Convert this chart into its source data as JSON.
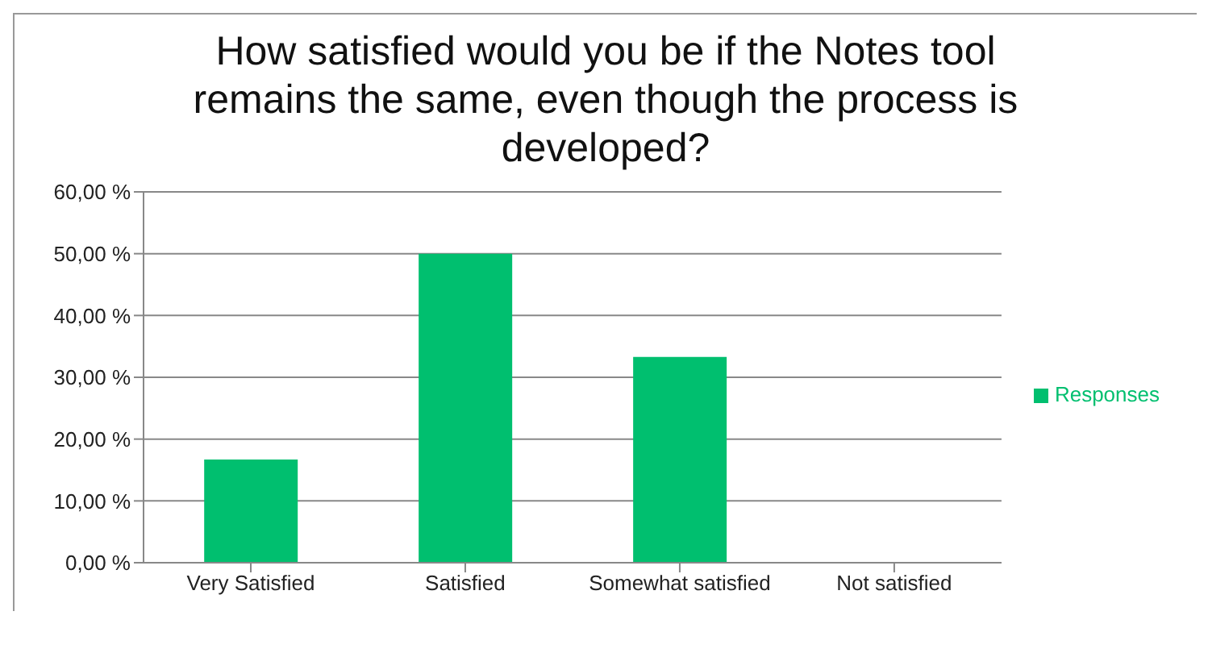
{
  "chart_data": {
    "type": "bar",
    "title": "How satisfied would you be if the Notes tool remains the same, even though the process is developed?",
    "categories": [
      "Very Satisfied",
      "Satisfied",
      "Somewhat satisfied",
      "Not satisfied"
    ],
    "series": [
      {
        "name": "Responses",
        "color": "#00bf6f",
        "values": [
          16.7,
          50,
          33.3,
          0
        ]
      }
    ],
    "ylim": [
      0,
      60
    ],
    "yticks": [
      {
        "value": 0,
        "label": "0,00 %"
      },
      {
        "value": 10,
        "label": "10,00 %"
      },
      {
        "value": 20,
        "label": "20,00 %"
      },
      {
        "value": 30,
        "label": "30,00 %"
      },
      {
        "value": 40,
        "label": "40,00 %"
      },
      {
        "value": 50,
        "label": "50,00 %"
      },
      {
        "value": 60,
        "label": "60,00 %"
      }
    ],
    "grid": "y",
    "legend": "right"
  }
}
